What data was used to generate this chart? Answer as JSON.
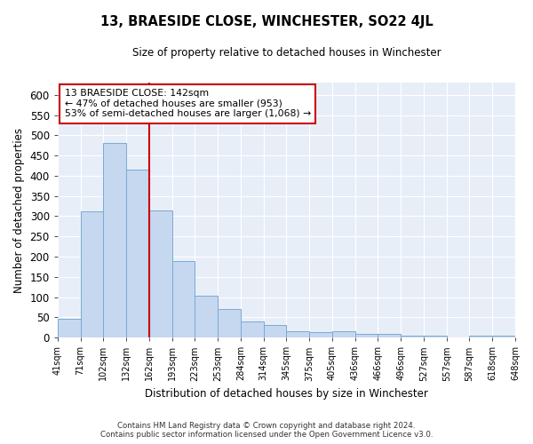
{
  "title": "13, BRAESIDE CLOSE, WINCHESTER, SO22 4JL",
  "subtitle": "Size of property relative to detached houses in Winchester",
  "xlabel": "Distribution of detached houses by size in Winchester",
  "ylabel": "Number of detached properties",
  "categories": [
    "41sqm",
    "71sqm",
    "102sqm",
    "132sqm",
    "162sqm",
    "193sqm",
    "223sqm",
    "253sqm",
    "284sqm",
    "314sqm",
    "345sqm",
    "375sqm",
    "405sqm",
    "436sqm",
    "466sqm",
    "496sqm",
    "527sqm",
    "557sqm",
    "587sqm",
    "618sqm",
    "648sqm"
  ],
  "values": [
    47,
    311,
    480,
    415,
    315,
    190,
    103,
    70,
    40,
    32,
    15,
    13,
    15,
    10,
    8,
    5,
    5,
    0,
    5,
    5
  ],
  "bar_color": "#c5d8f0",
  "bar_edge_color": "#7aaad0",
  "vline_x": 4,
  "vline_color": "#cc0000",
  "annotation_text": "13 BRAESIDE CLOSE: 142sqm\n← 47% of detached houses are smaller (953)\n53% of semi-detached houses are larger (1,068) →",
  "annotation_box_color": "#ffffff",
  "annotation_box_edge_color": "#cc0000",
  "ylim": [
    0,
    630
  ],
  "yticks": [
    0,
    50,
    100,
    150,
    200,
    250,
    300,
    350,
    400,
    450,
    500,
    550,
    600
  ],
  "background_color": "#e8eef8",
  "grid_color": "#ffffff",
  "footer_line1": "Contains HM Land Registry data © Crown copyright and database right 2024.",
  "footer_line2": "Contains public sector information licensed under the Open Government Licence v3.0."
}
